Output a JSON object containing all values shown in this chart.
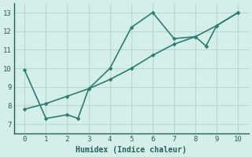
{
  "line1_x": [
    0,
    1,
    2,
    2.5,
    3,
    4,
    5,
    6,
    7,
    8,
    8.5,
    9,
    10
  ],
  "line1_y": [
    9.9,
    7.3,
    7.5,
    7.3,
    8.9,
    10.0,
    12.2,
    13.0,
    11.6,
    11.7,
    11.2,
    12.3,
    13.0
  ],
  "line2_x": [
    0,
    1,
    2,
    3,
    4,
    5,
    6,
    7,
    8,
    9,
    10
  ],
  "line2_y": [
    7.8,
    8.1,
    8.5,
    8.9,
    9.4,
    10.0,
    10.7,
    11.3,
    11.7,
    12.3,
    13.0
  ],
  "line_color": "#2e7d6e",
  "bg_color": "#d4eeea",
  "grid_color": "#b8d8d4",
  "xlabel": "Humidex (Indice chaleur)",
  "xlim": [
    -0.5,
    10.5
  ],
  "ylim": [
    6.5,
    13.5
  ],
  "xticks": [
    0,
    1,
    2,
    3,
    4,
    5,
    6,
    7,
    8,
    9,
    10
  ],
  "yticks": [
    7,
    8,
    9,
    10,
    11,
    12,
    13
  ],
  "font_color": "#2a5e58",
  "marker": "D",
  "marker_size": 2.8,
  "line_width": 1.2
}
